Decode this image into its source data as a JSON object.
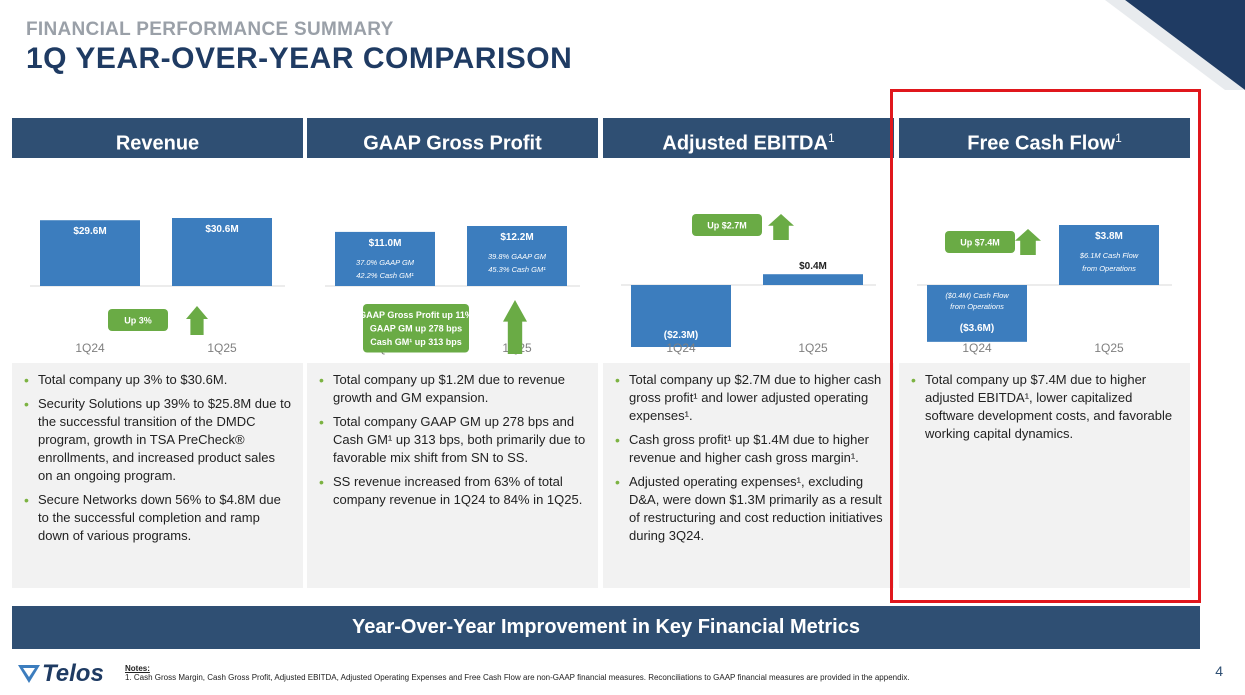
{
  "header": {
    "subtitle": "FINANCIAL PERFORMANCE SUMMARY",
    "title": "1Q YEAR-OVER-YEAR COMPARISON"
  },
  "colors": {
    "bar": "#3c7dbe",
    "arrow": "#6aab45",
    "header": "#2f4f73",
    "highlight": "#e0171c"
  },
  "panels": [
    {
      "title": "Revenue",
      "title_sup": "",
      "categories": [
        "1Q24",
        "1Q25"
      ],
      "bars": [
        {
          "label": "$29.6M",
          "sub1": "",
          "sub2": ""
        },
        {
          "label": "$30.6M",
          "sub1": "",
          "sub2": ""
        }
      ],
      "callout": [
        "Up 3%"
      ],
      "bullets": [
        "Total company up 3% to $30.6M.",
        "Security Solutions up 39% to $25.8M due to the successful transition of the DMDC program, growth in TSA PreCheck® enrollments, and increased product sales on an ongoing program.",
        "Secure Networks down 56% to $4.8M due to the successful completion and ramp down of various programs."
      ]
    },
    {
      "title": "GAAP Gross Profit",
      "title_sup": "",
      "categories": [
        "1Q24",
        "1Q25"
      ],
      "bars": [
        {
          "label": "$11.0M",
          "sub1": "37.0% GAAP GM",
          "sub2": "42.2% Cash GM¹"
        },
        {
          "label": "$12.2M",
          "sub1": "39.8% GAAP GM",
          "sub2": "45.3% Cash GM¹"
        }
      ],
      "callout": [
        "GAAP Gross Profit up 11%",
        "GAAP GM up 278 bps",
        "Cash GM¹ up 313 bps"
      ],
      "bullets": [
        "Total company up $1.2M due to revenue growth and GM expansion.",
        "Total company GAAP GM up 278 bps and Cash GM¹ up 313 bps, both primarily due to favorable mix shift from SN to SS.",
        "SS revenue increased from 63% of total company revenue in 1Q24 to 84% in 1Q25."
      ]
    },
    {
      "title": "Adjusted EBITDA",
      "title_sup": "1",
      "categories": [
        "1Q24",
        "1Q25"
      ],
      "bars": [
        {
          "label": "($2.3M)",
          "sub1": "",
          "sub2": ""
        },
        {
          "label": "$0.4M",
          "sub1": "",
          "sub2": ""
        }
      ],
      "callout": [
        "Up $2.7M"
      ],
      "bullets": [
        "Total company up $2.7M due to higher cash gross profit¹ and lower adjusted operating expenses¹.",
        "Cash gross profit¹ up $1.4M due to higher revenue and higher cash gross margin¹.",
        "Adjusted operating expenses¹, excluding D&A, were down $1.3M primarily as a result of restructuring and cost reduction initiatives during 3Q24."
      ]
    },
    {
      "title": "Free Cash Flow",
      "title_sup": "1",
      "categories": [
        "1Q24",
        "1Q25"
      ],
      "bars": [
        {
          "label": "($3.6M)",
          "sub1": "($0.4M) Cash Flow",
          "sub2": "from Operations"
        },
        {
          "label": "$3.8M",
          "sub1": "$6.1M Cash Flow",
          "sub2": "from Operations"
        }
      ],
      "callout": [
        "Up $7.4M"
      ],
      "bullets": [
        "Total company up $7.4M due to higher adjusted EBITDA¹, lower capitalized software development costs, and favorable working capital dynamics."
      ]
    }
  ],
  "chart_data": [
    {
      "type": "bar",
      "title": "Revenue",
      "categories": [
        "1Q24",
        "1Q25"
      ],
      "values": [
        29.6,
        30.6
      ],
      "unit": "$M"
    },
    {
      "type": "bar",
      "title": "GAAP Gross Profit",
      "categories": [
        "1Q24",
        "1Q25"
      ],
      "values": [
        11.0,
        12.2
      ],
      "unit": "$M"
    },
    {
      "type": "bar",
      "title": "Adjusted EBITDA1",
      "categories": [
        "1Q24",
        "1Q25"
      ],
      "values": [
        -2.3,
        0.4
      ],
      "unit": "$M"
    },
    {
      "type": "bar",
      "title": "Free Cash Flow1",
      "categories": [
        "1Q24",
        "1Q25"
      ],
      "values": [
        -3.6,
        3.8
      ],
      "unit": "$M"
    }
  ],
  "banner": "Year-Over-Year Improvement in Key Financial Metrics",
  "logo": "Telos",
  "notes": {
    "title": "Notes:",
    "items": [
      "1.    Cash Gross Margin, Cash Gross Profit, Adjusted EBITDA, Adjusted Operating Expenses and Free Cash Flow are non-GAAP financial measures. Reconciliations to GAAP financial measures are provided in the appendix."
    ]
  },
  "page_number": "4"
}
